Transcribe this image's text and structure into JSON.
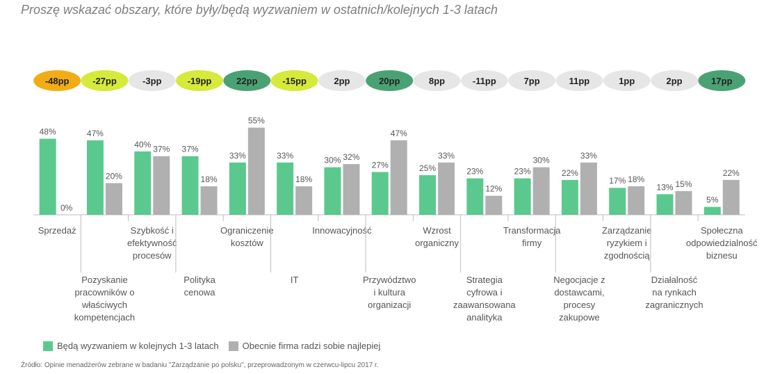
{
  "title": "Proszę wskazać obszary, które były/będą wyzwaniem w ostatnich/kolejnych 1-3 latach",
  "source": "Źródło: Opinie menadżerów zebrane w badaniu \"Zarządzanie po polsku\", przeprowadzonym w czerwcu-lipcu 2017 r.",
  "colors": {
    "green": "#5bc98e",
    "gray": "#b0b0b0",
    "pill_orange": "#f2ad16",
    "pill_lime": "#d5ea3a",
    "pill_gray": "#e6e6e6",
    "pill_darkgreen": "#4aa274"
  },
  "chart_data": {
    "type": "bar",
    "title": "Proszę wskazać obszary, które były/będą wyzwaniem w ostatnich/kolejnych 1-3 latach",
    "ylim": [
      0,
      60
    ],
    "grid": false,
    "legend_position": "bottom-left",
    "categories": [
      "Sprzedaż",
      "Pozyskanie pracowników o właściwych kompetencjach",
      "Szybkość i efektywność procesów",
      "Polityka cenowa",
      "Ograniczenie kosztów",
      "IT",
      "Innowacyjność",
      "Przywództwo i kultura organizacji",
      "Wzrost organiczny",
      "Strategia cyfrowa i zaawansowana analityka",
      "Transformacja firmy",
      "Negocjacje z dostawcami, procesy zakupowe",
      "Zarządzanie ryzykiem i zgodnością",
      "Działalność na rynkach zagranicznych",
      "Społeczna odpowiedzialność biznesu"
    ],
    "category_lines": [
      [
        "Sprzedaż"
      ],
      [
        "Pozyskanie",
        "pracowników o",
        "właściwych",
        "kompetencjach"
      ],
      [
        "Szybkość i",
        "efektywność",
        "procesów"
      ],
      [
        "Polityka",
        "cenowa"
      ],
      [
        "Ograniczenie",
        "kosztów"
      ],
      [
        "IT"
      ],
      [
        "Innowacyjność"
      ],
      [
        "Przywództwo",
        "i kultura",
        "organizacji"
      ],
      [
        "Wzrost",
        "organiczny"
      ],
      [
        "Strategia",
        "cyfrowa i",
        "zaawansowana",
        "analityka"
      ],
      [
        "Transformacja",
        "firmy"
      ],
      [
        "Negocjacje z",
        "dostawcami,",
        "procesy",
        "zakupowe"
      ],
      [
        "Zarządzanie",
        "ryzykiem i",
        "zgodnością"
      ],
      [
        "Działalność",
        "na rynkach",
        "zagranicznych"
      ],
      [
        "Społeczna",
        "odpowiedzialność",
        "biznesu"
      ]
    ],
    "series": [
      {
        "name": "Będą wyzwaniem w kolejnych 1-3 latach",
        "values": [
          48,
          47,
          40,
          37,
          33,
          33,
          30,
          27,
          25,
          23,
          23,
          22,
          17,
          13,
          5
        ]
      },
      {
        "name": "Obecnie firma radzi sobie najlepiej",
        "values": [
          0,
          20,
          37,
          18,
          55,
          18,
          32,
          47,
          33,
          12,
          30,
          33,
          18,
          15,
          22
        ]
      }
    ],
    "differences": [
      "-48pp",
      "-27pp",
      "-3pp",
      "-19pp",
      "22pp",
      "-15pp",
      "2pp",
      "20pp",
      "8pp",
      "-11pp",
      "7pp",
      "11pp",
      "1pp",
      "2pp",
      "17pp"
    ],
    "difference_colors": [
      "orange",
      "lime",
      "gray",
      "lime",
      "darkgreen",
      "lime",
      "gray",
      "darkgreen",
      "gray",
      "gray",
      "gray",
      "gray",
      "gray",
      "gray",
      "darkgreen"
    ]
  }
}
